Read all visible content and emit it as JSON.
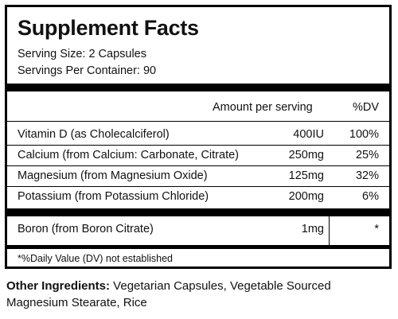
{
  "title": "Supplement Facts",
  "serving_size": "Serving Size: 2 Capsules",
  "servings_per_container": "Servings Per Container: 90",
  "header": {
    "amount": "Amount per serving",
    "dv": "%DV"
  },
  "nutrients": [
    {
      "name": "Vitamin D (as Cholecalciferol)",
      "amount": "400IU",
      "dv": "100%"
    },
    {
      "name": "Calcium (from Calcium: Carbonate, Citrate)",
      "amount": "250mg",
      "dv": "25%"
    },
    {
      "name": "Magnesium (from Magnesium Oxide)",
      "amount": "125mg",
      "dv": "32%"
    },
    {
      "name": "Potassium (from Potassium Chloride)",
      "amount": "200mg",
      "dv": "6%"
    }
  ],
  "extra": [
    {
      "name": "Boron (from Boron Citrate)",
      "amount": "1mg",
      "dv": "*"
    }
  ],
  "footnote": "*%Daily Value (DV) not established",
  "other_ingredients": {
    "label": "Other Ingredients:",
    "text": " Vegetarian Capsules, Vegetable Sourced Magnesium Stearate, Rice"
  }
}
